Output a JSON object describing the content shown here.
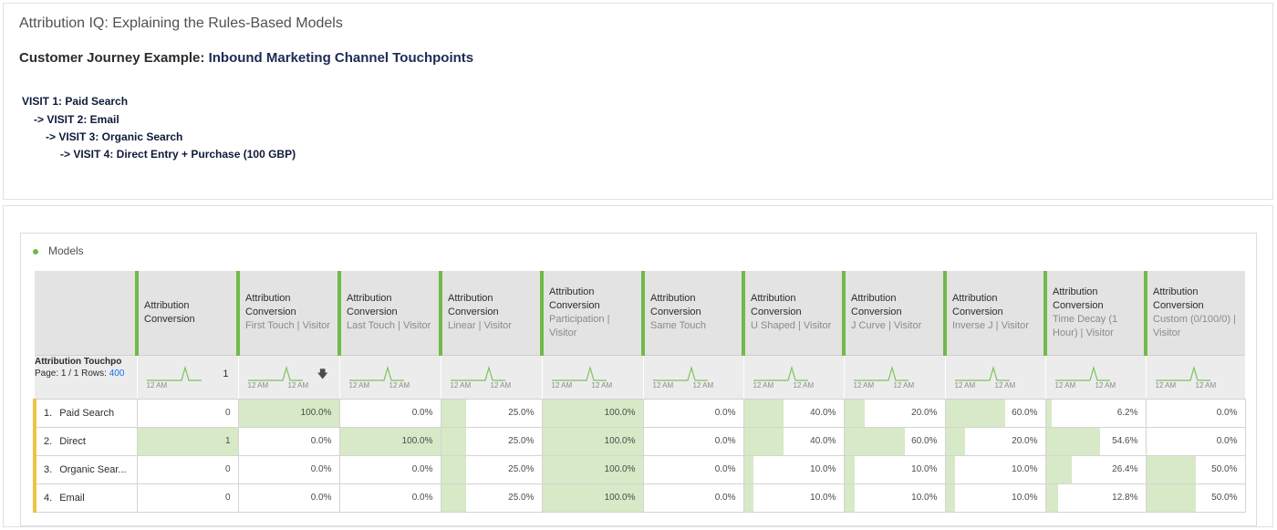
{
  "page": {
    "title": "Attribution IQ: Explaining the Rules-Based Models",
    "subtitle_prefix": "Customer Journey Example:",
    "subtitle_emphasis": "Inbound Marketing Channel Touchpoints",
    "journey": [
      "VISIT 1: Paid Search",
      "-> VISIT 2:  Email",
      "-> VISIT 3: Organic Search",
      "-> VISIT 4: Direct Entry + Purchase (100 GBP)"
    ]
  },
  "panel": {
    "title": "Models",
    "accent_color": "#6fba4a"
  },
  "table": {
    "dimension": {
      "title": "Attribution Touchpo",
      "page_label": "Page: 1 / 1  Rows:",
      "rows_value": "400"
    },
    "columns": [
      {
        "title": "Attribution Conversion",
        "subtitle": "",
        "total": "1",
        "ticks": [
          "12 AM"
        ]
      },
      {
        "title": "Attribution Conversion",
        "subtitle": "First Touch | Visitor",
        "total": "",
        "ticks": [
          "12 AM",
          "12 AM"
        ],
        "sorted": true
      },
      {
        "title": "Attribution Conversion",
        "subtitle": "Last Touch | Visitor",
        "total": "",
        "ticks": [
          "12 AM",
          "12 AM"
        ]
      },
      {
        "title": "Attribution Conversion",
        "subtitle": "Linear | Visitor",
        "total": "",
        "ticks": [
          "12 AM",
          "12 AM"
        ]
      },
      {
        "title": "Attribution Conversion",
        "subtitle": "Participation | Visitor",
        "total": "",
        "ticks": [
          "12 AM",
          "12 AM"
        ]
      },
      {
        "title": "Attribution Conversion",
        "subtitle": "Same Touch",
        "total": "",
        "ticks": [
          "12 AM",
          "12 AM"
        ]
      },
      {
        "title": "Attribution Conversion",
        "subtitle": "U Shaped | Visitor",
        "total": "",
        "ticks": [
          "12 AM",
          "12 AM"
        ]
      },
      {
        "title": "Attribution Conversion",
        "subtitle": "J Curve | Visitor",
        "total": "",
        "ticks": [
          "12 AM",
          "12 AM"
        ]
      },
      {
        "title": "Attribution Conversion",
        "subtitle": "Inverse J | Visitor",
        "total": "",
        "ticks": [
          "12 AM",
          "12 AM"
        ]
      },
      {
        "title": "Attribution Conversion",
        "subtitle": "Time Decay (1 Hour) | Visitor",
        "total": "",
        "ticks": [
          "12 AM",
          "12 AM"
        ]
      },
      {
        "title": "Attribution Conversion",
        "subtitle": "Custom (0/100/0) | Visitor",
        "total": "",
        "ticks": [
          "12 AM",
          "12 AM"
        ]
      }
    ],
    "rows": [
      {
        "index": "1.",
        "label": "Paid Search",
        "cells": [
          {
            "text": "0",
            "fill": 0
          },
          {
            "text": "100.0%",
            "fill": 1.0
          },
          {
            "text": "0.0%",
            "fill": 0
          },
          {
            "text": "25.0%",
            "fill": 0.25
          },
          {
            "text": "100.0%",
            "fill": 1.0
          },
          {
            "text": "0.0%",
            "fill": 0
          },
          {
            "text": "40.0%",
            "fill": 0.4
          },
          {
            "text": "20.0%",
            "fill": 0.2
          },
          {
            "text": "60.0%",
            "fill": 0.6
          },
          {
            "text": "6.2%",
            "fill": 0.062
          },
          {
            "text": "0.0%",
            "fill": 0
          }
        ]
      },
      {
        "index": "2.",
        "label": "Direct",
        "cells": [
          {
            "text": "1",
            "fill": 1.0
          },
          {
            "text": "0.0%",
            "fill": 0
          },
          {
            "text": "100.0%",
            "fill": 1.0
          },
          {
            "text": "25.0%",
            "fill": 0.25
          },
          {
            "text": "100.0%",
            "fill": 1.0
          },
          {
            "text": "0.0%",
            "fill": 0
          },
          {
            "text": "40.0%",
            "fill": 0.4
          },
          {
            "text": "60.0%",
            "fill": 0.6
          },
          {
            "text": "20.0%",
            "fill": 0.2
          },
          {
            "text": "54.6%",
            "fill": 0.546
          },
          {
            "text": "0.0%",
            "fill": 0
          }
        ]
      },
      {
        "index": "3.",
        "label": "Organic Sear...",
        "cells": [
          {
            "text": "0",
            "fill": 0
          },
          {
            "text": "0.0%",
            "fill": 0
          },
          {
            "text": "0.0%",
            "fill": 0
          },
          {
            "text": "25.0%",
            "fill": 0.25
          },
          {
            "text": "100.0%",
            "fill": 1.0
          },
          {
            "text": "0.0%",
            "fill": 0
          },
          {
            "text": "10.0%",
            "fill": 0.1
          },
          {
            "text": "10.0%",
            "fill": 0.1
          },
          {
            "text": "10.0%",
            "fill": 0.1
          },
          {
            "text": "26.4%",
            "fill": 0.264
          },
          {
            "text": "50.0%",
            "fill": 0.5
          }
        ]
      },
      {
        "index": "4.",
        "label": "Email",
        "cells": [
          {
            "text": "0",
            "fill": 0
          },
          {
            "text": "0.0%",
            "fill": 0
          },
          {
            "text": "0.0%",
            "fill": 0
          },
          {
            "text": "25.0%",
            "fill": 0.25
          },
          {
            "text": "100.0%",
            "fill": 1.0
          },
          {
            "text": "0.0%",
            "fill": 0
          },
          {
            "text": "10.0%",
            "fill": 0.1
          },
          {
            "text": "10.0%",
            "fill": 0.1
          },
          {
            "text": "10.0%",
            "fill": 0.1
          },
          {
            "text": "12.8%",
            "fill": 0.128
          },
          {
            "text": "50.0%",
            "fill": 0.5
          }
        ]
      }
    ]
  },
  "icons": {
    "sort": "sort-descending-icon",
    "sparkline": "sparkline-icon",
    "panel_status": "status-dot-icon"
  }
}
